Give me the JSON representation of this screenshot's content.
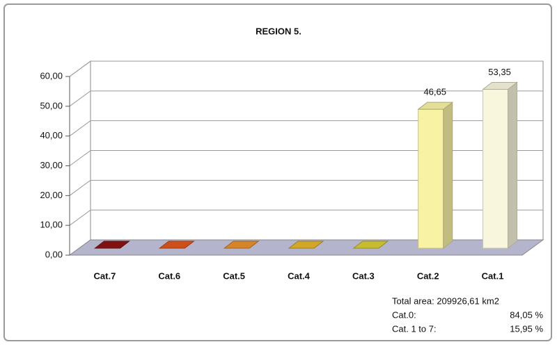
{
  "chart_data": {
    "type": "bar3d",
    "title": "REGION 5.",
    "categories": [
      "Cat.7",
      "Cat.6",
      "Cat.5",
      "Cat.4",
      "Cat.3",
      "Cat.2",
      "Cat.1"
    ],
    "values": [
      0,
      0,
      0,
      0,
      0,
      46.65,
      53.35
    ],
    "value_labels": [
      null,
      null,
      null,
      null,
      null,
      "46,65",
      "53,35"
    ],
    "colors": [
      "#8b1414",
      "#e0561c",
      "#e8902c",
      "#e4b42c",
      "#d8cc34",
      "#f8f2a4",
      "#f8f6dc"
    ],
    "ylim": [
      0,
      60
    ],
    "yticks": [
      {
        "value": 0,
        "label": "0,00"
      },
      {
        "value": 10,
        "label": "10,00"
      },
      {
        "value": 20,
        "label": "20,00"
      },
      {
        "value": 30,
        "label": "30,00"
      },
      {
        "value": 40,
        "label": "40,00"
      },
      {
        "value": 50,
        "label": "50,00"
      },
      {
        "value": 60,
        "label": "60,00"
      }
    ],
    "grid": true,
    "annotations": {
      "total": "Total area: 209926,61 km2",
      "rows": [
        {
          "label": "Cat.0:",
          "value": "84,05 %"
        },
        {
          "label": "Cat. 1 to 7:",
          "value": "15,95 %"
        }
      ]
    }
  }
}
